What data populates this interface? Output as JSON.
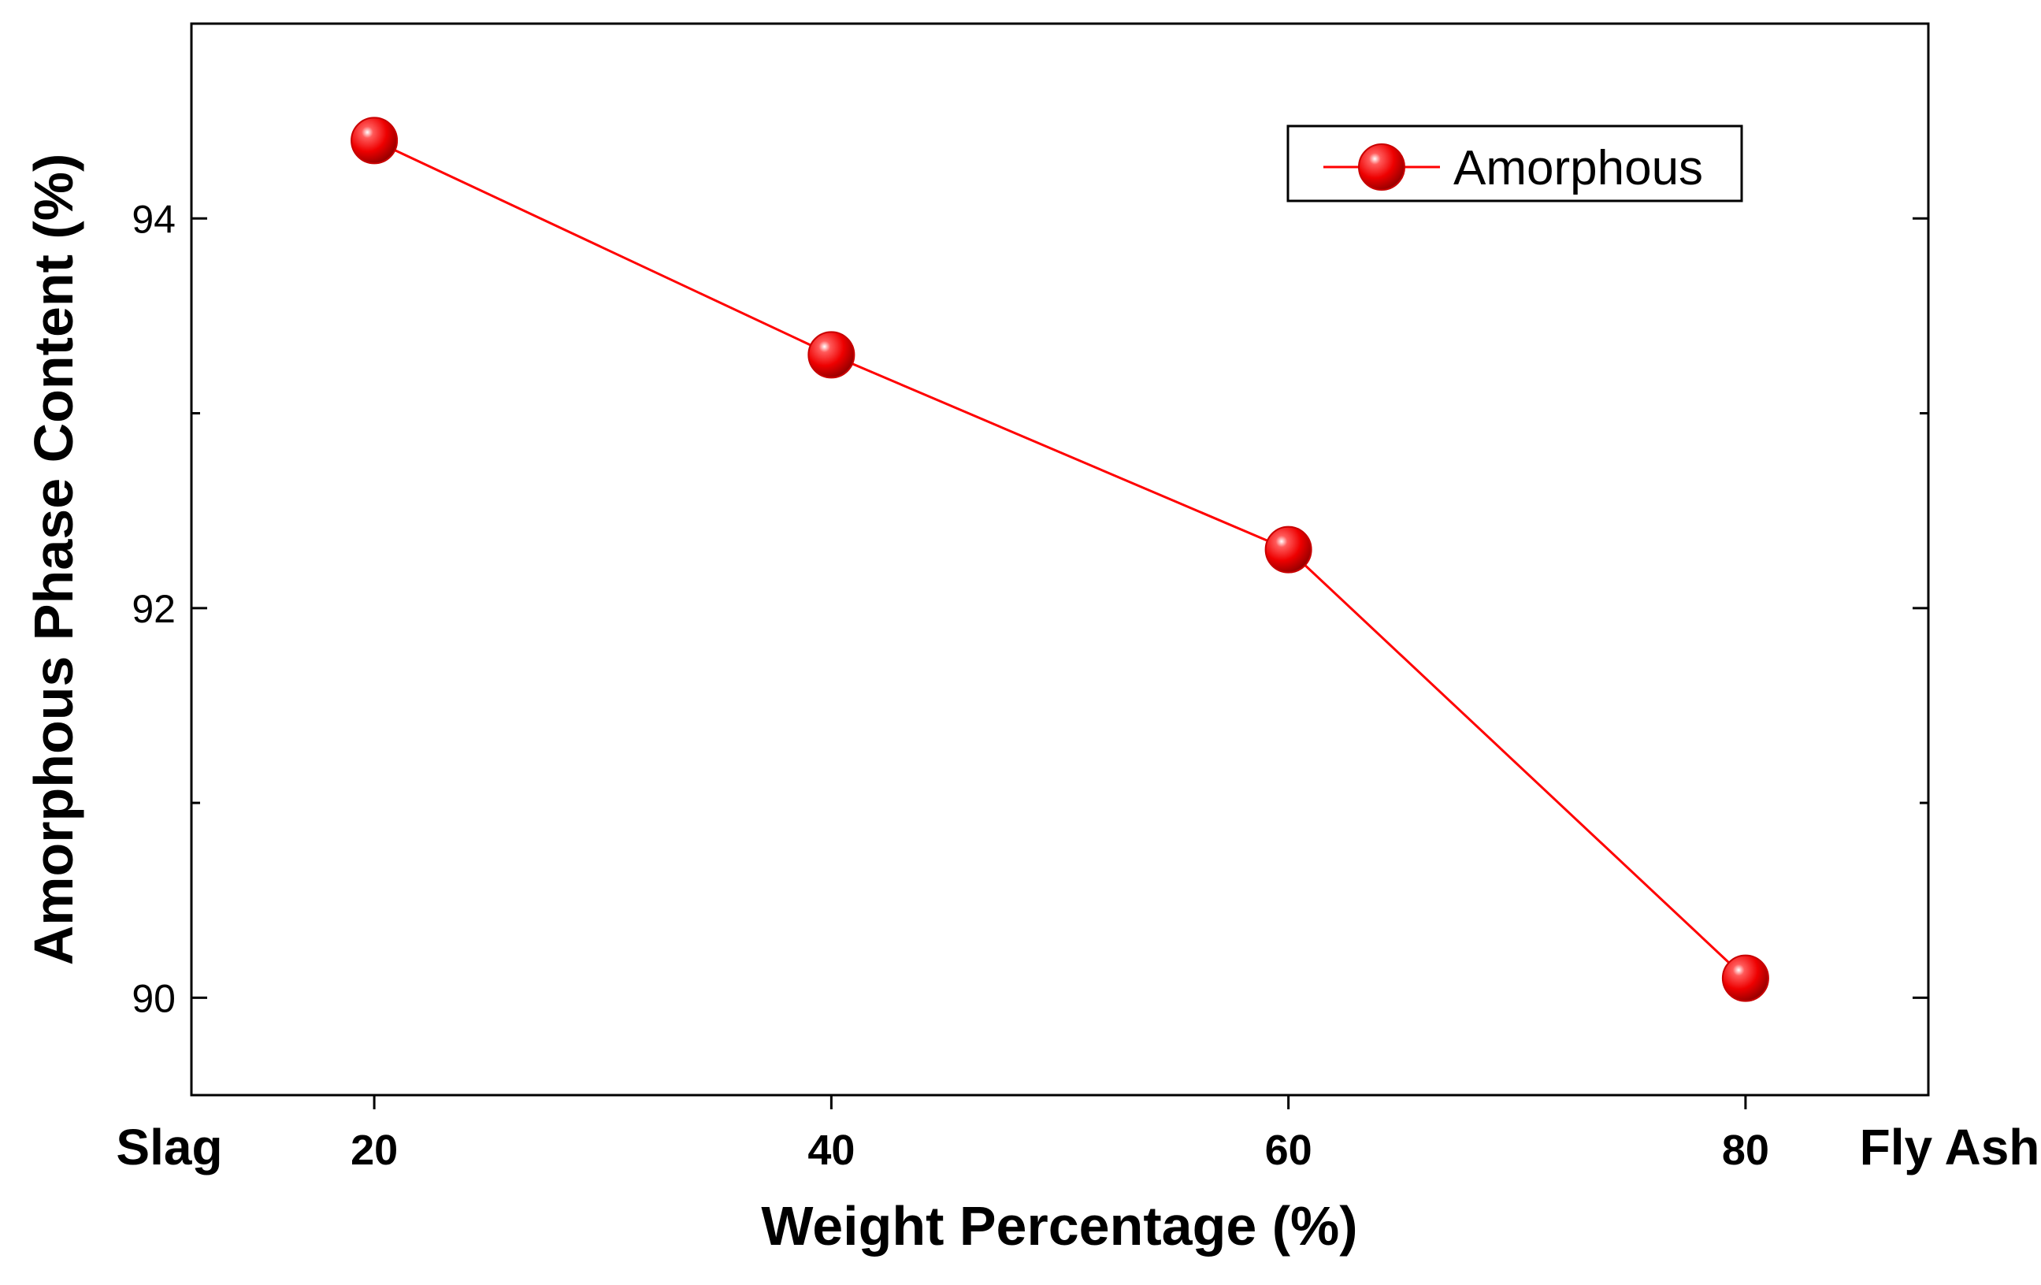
{
  "chart_data": {
    "type": "line",
    "title": "",
    "xlabel": "Weight Percentage (%)",
    "ylabel": "Amorphous Phase Content (%)",
    "x": [
      20,
      40,
      60,
      80
    ],
    "series": [
      {
        "name": "Amorphous",
        "values": [
          94.4,
          93.3,
          92.3,
          90.1
        ],
        "color": "#ff0000",
        "marker": "circle"
      }
    ],
    "xlim": [
      12,
      88
    ],
    "ylim": [
      89.5,
      95.0
    ],
    "xticks": [
      20,
      40,
      60,
      80
    ],
    "yticks": [
      90,
      92,
      94
    ],
    "left_end_label": "Slag",
    "right_end_label": "Fly Ash",
    "legend_position": "top-right",
    "grid": false
  }
}
